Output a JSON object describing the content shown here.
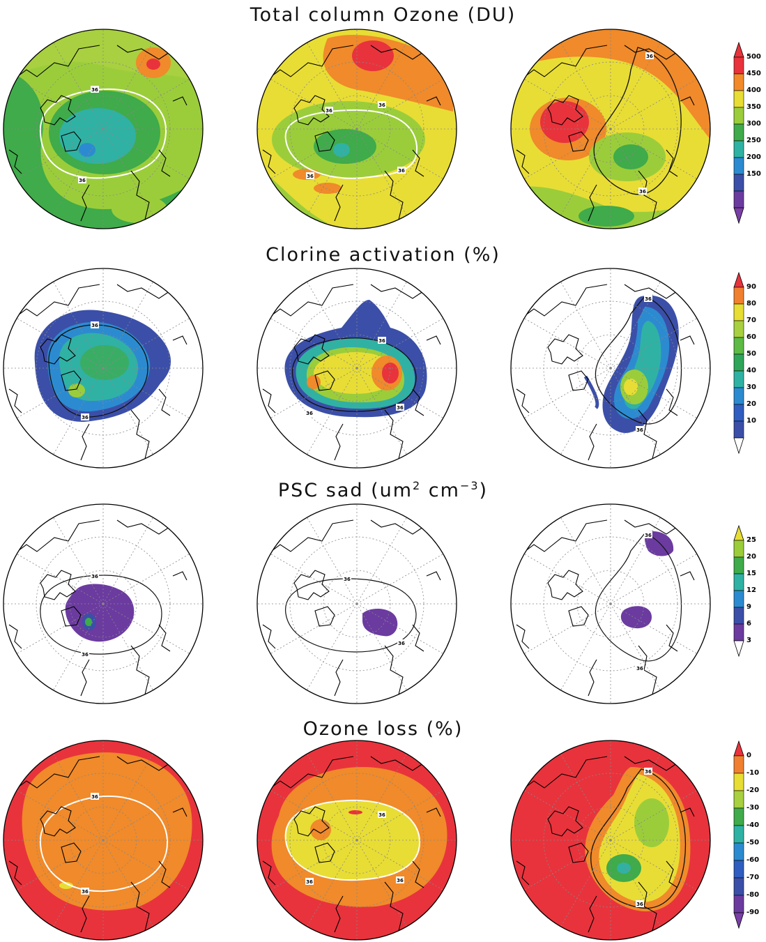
{
  "rows": [
    {
      "id": "ozone",
      "title": "Total column Ozone (DU)",
      "colorbar": {
        "labels": [
          "500",
          "450",
          "400",
          "350",
          "300",
          "250",
          "200",
          "150"
        ],
        "colors": [
          "#e8333c",
          "#f28a2a",
          "#e8dd35",
          "#9bcd3b",
          "#3fab4a",
          "#2fb2a4",
          "#2c8bd0",
          "#3b4fa8",
          "#6b3ba0"
        ],
        "top_arrow": "#e8333c",
        "bottom_arrow": "#7a3fa6"
      },
      "contour_label": "36",
      "contour_color": "#ffffff"
    },
    {
      "id": "chlorine",
      "title": "Clorine activation (%)",
      "colorbar": {
        "labels": [
          "90",
          "80",
          "70",
          "60",
          "50",
          "40",
          "30",
          "20",
          "10"
        ],
        "colors": [
          "#f08030",
          "#e8dd35",
          "#a8d040",
          "#5cba45",
          "#2fa55a",
          "#2fb2a4",
          "#2c8bd0",
          "#2f5ec0",
          "#3b4fa8"
        ],
        "top_arrow": "#e8333c",
        "bottom_arrow": "#ffffff"
      },
      "contour_label": "36",
      "contour_color": "#111111"
    },
    {
      "id": "psc",
      "title": "PSC sad (um",
      "title_sup1": "2",
      "title_mid": " cm",
      "title_sup2": "−3",
      "title_end": ")",
      "colorbar": {
        "labels": [
          "25",
          "20",
          "15",
          "12",
          "9",
          "6",
          "3"
        ],
        "colors": [
          "#9bcd3b",
          "#3fab4a",
          "#2fb2a4",
          "#2c8bd0",
          "#3b4fa8",
          "#6b3ba0"
        ],
        "top_arrow": "#e8dd35",
        "bottom_arrow": "#ffffff"
      },
      "contour_label": "36",
      "contour_color": "#111111"
    },
    {
      "id": "loss",
      "title": "Ozone loss (%)",
      "colorbar": {
        "labels": [
          "0",
          "-10",
          "-20",
          "-30",
          "-40",
          "-50",
          "-60",
          "-70",
          "-80",
          "-90"
        ],
        "colors": [
          "#f08030",
          "#e8dd35",
          "#a8d040",
          "#3fab4a",
          "#2fb2a4",
          "#2c8bd0",
          "#2f5ec0",
          "#3b4fa8",
          "#6b3ba0"
        ],
        "top_arrow": "#e8333c",
        "bottom_arrow": "#7a3fa6"
      },
      "contour_label": "36",
      "contour_color": "#ffffff"
    }
  ]
}
